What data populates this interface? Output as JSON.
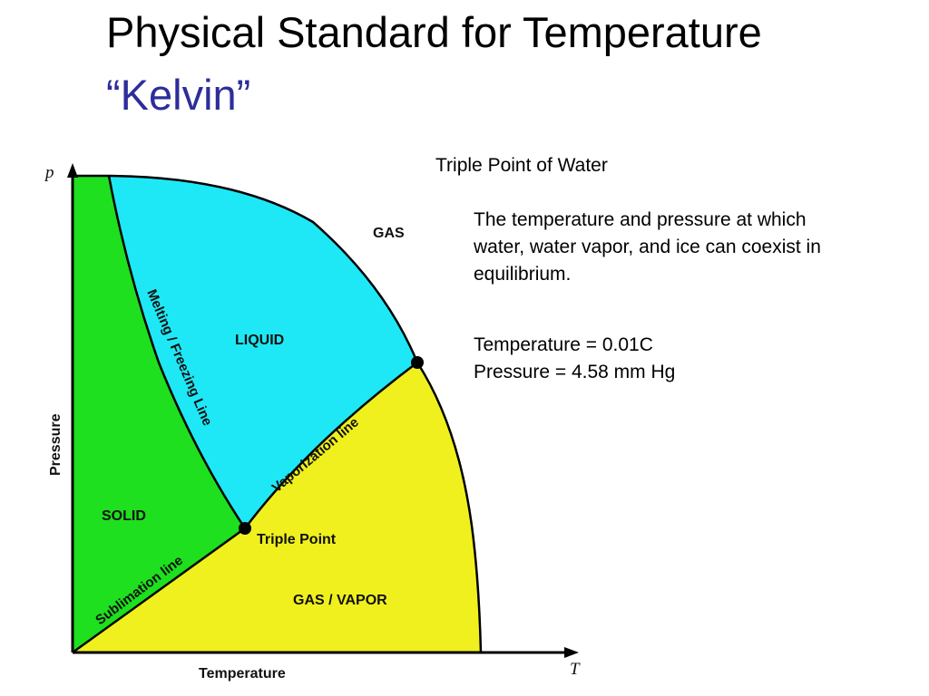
{
  "slide": {
    "title": "Physical Standard for Temperature",
    "subtitle": "“Kelvin”",
    "subtitle_color": "#2d2d9a"
  },
  "side_panel": {
    "heading": "Triple Point of Water",
    "definition_lines": [
      "The temperature and pressure at which",
      "water, water vapor, and ice can coexist in",
      "equilibrium."
    ],
    "values": [
      "Temperature = 0.01C",
      "Pressure = 4.58 mm Hg"
    ]
  },
  "diagram": {
    "y_axis_letter": "p",
    "x_axis_letter": "T",
    "y_axis_label": "Pressure",
    "x_axis_label": "Temperature",
    "regions": {
      "gas": "GAS",
      "liquid": "LIQUID",
      "solid": "SOLID",
      "gas_vapor": "GAS / VAPOR"
    },
    "lines": {
      "melting": "Melting / Freezing Line",
      "vaporization": "Vaporization line",
      "sublimation": "Sublimation line"
    },
    "points": {
      "triple": "Triple Point"
    },
    "colors": {
      "solid": "#1ee01e",
      "liquid": "#1ee8f5",
      "vapor": "#f0f01e",
      "outline": "#000000"
    }
  }
}
